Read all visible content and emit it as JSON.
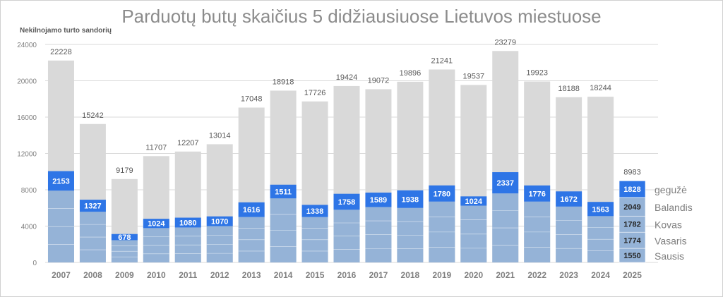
{
  "chart_data": {
    "type": "bar",
    "title": "Parduotų butų skaičius 5 didžiausiuose Lietuvos miestuose",
    "ylabel": "Nekilnojamo turto sandorių",
    "ylim": [
      0,
      24000
    ],
    "yticks": [
      "0",
      "4000",
      "8000",
      "12000",
      "16000",
      "20000",
      "24000"
    ],
    "categories": [
      "2007",
      "2008",
      "2009",
      "2010",
      "2011",
      "2012",
      "2013",
      "2014",
      "2015",
      "2016",
      "2017",
      "2018",
      "2019",
      "2020",
      "2021",
      "2022",
      "2023",
      "2024",
      "2025"
    ],
    "totals": [
      22228,
      15242,
      9179,
      11707,
      12207,
      13014,
      17048,
      18918,
      17726,
      19424,
      19072,
      19896,
      21241,
      19537,
      23279,
      19923,
      18188,
      18244,
      8983
    ],
    "may_values": [
      2153,
      1327,
      678,
      1024,
      1080,
      1070,
      1616,
      1511,
      1338,
      1758,
      1589,
      1938,
      1780,
      1024,
      2337,
      1776,
      1672,
      1563,
      1828
    ],
    "jan_apr_estimates": [
      7900,
      5580,
      2450,
      3780,
      3850,
      4000,
      5000,
      7050,
      5000,
      5800,
      6100,
      6000,
      6700,
      6250,
      7600,
      6700,
      6150,
      5100
    ],
    "series_2025": [
      {
        "name": "Sausis",
        "value": 1550
      },
      {
        "name": "Vasaris",
        "value": 1774
      },
      {
        "name": "Kovas",
        "value": 1782
      },
      {
        "name": "Balandis",
        "value": 2049
      },
      {
        "name": "gegužė",
        "value": 1828
      }
    ],
    "grid": true,
    "colors": {
      "total": "#d9d9d9",
      "may": "#2e75e6",
      "jan_apr": "#95b3d7",
      "axis_text": "#7f7f7f",
      "value_label": "#595959"
    }
  }
}
